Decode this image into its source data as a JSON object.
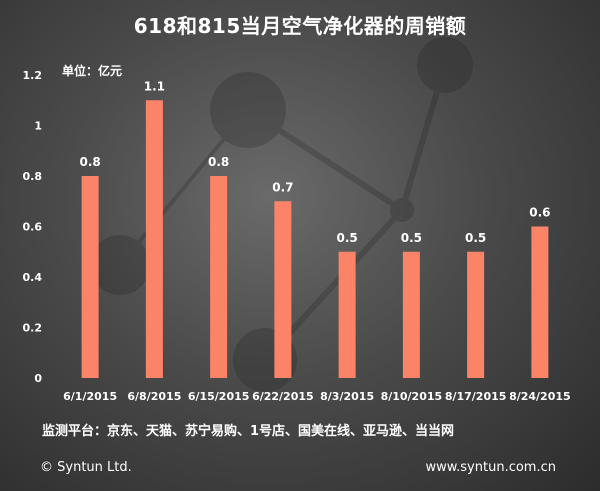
{
  "chart_data": {
    "type": "bar",
    "title": "618和815当月空气净化器的周销额",
    "unit_label": "单位：亿元",
    "categories": [
      "6/1/2015",
      "6/8/2015",
      "6/15/2015",
      "6/22/2015",
      "8/3/2015",
      "8/10/2015",
      "8/17/2015",
      "8/24/2015"
    ],
    "values": [
      0.8,
      1.1,
      0.8,
      0.7,
      0.5,
      0.5,
      0.5,
      0.6
    ],
    "data_labels": [
      "0.8",
      "1.1",
      "0.8",
      "0.7",
      "0.5",
      "0.5",
      "0.5",
      "0.6"
    ],
    "y_ticks": [
      0,
      0.2,
      0.4,
      0.6,
      0.8,
      1,
      1.2
    ],
    "y_tick_labels": [
      "0",
      "0.2",
      "0.4",
      "0.6",
      "0.8",
      "1",
      "1.2"
    ],
    "ylim": [
      0,
      1.2
    ],
    "xlabel": "",
    "ylabel": "",
    "grid": false,
    "bar_color": "#fb8367"
  },
  "platforms": "监测平台：京东、天猫、苏宁易购、1号店、国美在线、亚马逊、当当网",
  "footer": {
    "copyright": "© Syntun Ltd.",
    "website": "www.syntun.com.cn"
  }
}
